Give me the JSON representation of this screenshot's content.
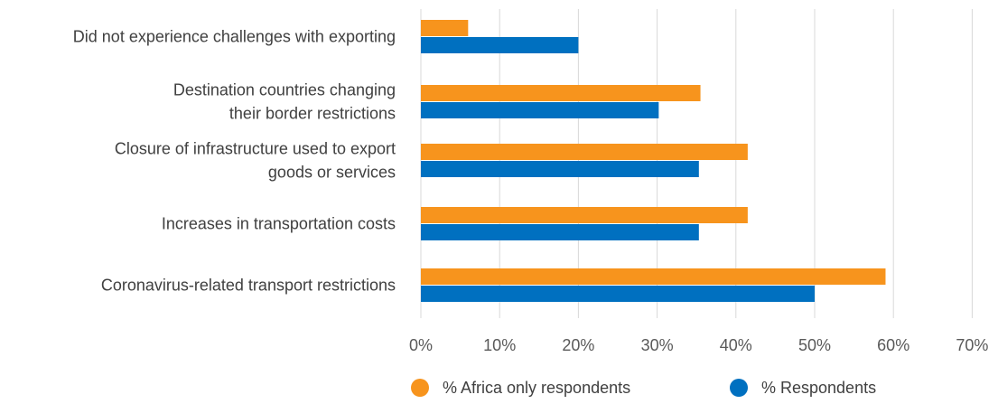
{
  "chart_data": {
    "type": "bar",
    "orientation": "horizontal",
    "categories": [
      [
        "Did not experience challenges with exporting"
      ],
      [
        "Destination countries changing",
        "their border restrictions"
      ],
      [
        "Closure of infrastructure used to export",
        "goods or services"
      ],
      [
        "Increases in transportation costs"
      ],
      [
        "Coronavirus-related transport restrictions"
      ]
    ],
    "series": [
      {
        "name": "% Africa only respondents",
        "color": "#f7941d",
        "values": [
          6,
          35.5,
          41.5,
          41.5,
          59
        ]
      },
      {
        "name": "% Respondents",
        "color": "#0070c0",
        "values": [
          20,
          30.2,
          35.3,
          35.3,
          50
        ]
      }
    ],
    "x_ticks": [
      "0%",
      "10%",
      "20%",
      "30%",
      "40%",
      "50%",
      "60%",
      "70%"
    ],
    "xlim": [
      0,
      70
    ],
    "grid": true,
    "legend_position": "bottom",
    "title": "",
    "xlabel": "",
    "ylabel": ""
  }
}
